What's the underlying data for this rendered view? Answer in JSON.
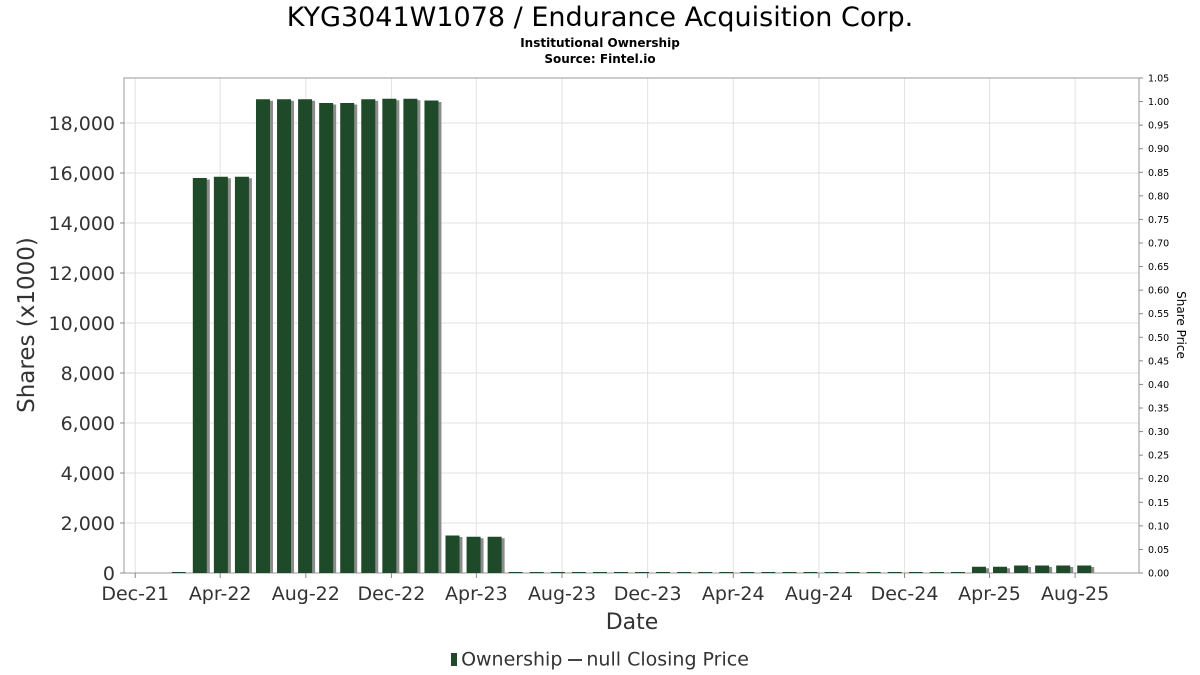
{
  "chart_data": {
    "type": "bar",
    "title": "KYG3041W1078 / Endurance Acquisition Corp.",
    "subtitle": [
      "Institutional Ownership",
      "Source: Fintel.io"
    ],
    "xlabel": "Date",
    "ylabel": "Shares (x1000)",
    "y2label": "Share Price",
    "ylim": [
      0,
      19800
    ],
    "y2lim": [
      0,
      1.05
    ],
    "xlim": [
      "2021-11-15",
      "2025-10-31"
    ],
    "x_ticks": [
      "Dec-21",
      "Apr-22",
      "Aug-22",
      "Dec-22",
      "Apr-23",
      "Aug-23",
      "Dec-23",
      "Apr-24",
      "Aug-24",
      "Dec-24",
      "Apr-25",
      "Aug-25"
    ],
    "x_tick_dates": [
      "2021-12-01",
      "2022-04-01",
      "2022-08-01",
      "2022-12-01",
      "2023-04-01",
      "2023-08-01",
      "2023-12-01",
      "2024-04-01",
      "2024-08-01",
      "2024-12-01",
      "2025-04-01",
      "2025-08-01"
    ],
    "y_ticks": [
      0,
      2000,
      4000,
      6000,
      8000,
      10000,
      12000,
      14000,
      16000,
      18000
    ],
    "y2_ticks": [
      0.0,
      0.05,
      0.1,
      0.15,
      0.2,
      0.25,
      0.3,
      0.35,
      0.4,
      0.45,
      0.5,
      0.55,
      0.6,
      0.65,
      0.7,
      0.75,
      0.8,
      0.85,
      0.9,
      0.95,
      1.0,
      1.05
    ],
    "grid": true,
    "legend_position": "bottom",
    "series": [
      {
        "name": "Ownership",
        "color": "#1f4a29",
        "x": [
          "2022-02-01",
          "2022-03-03",
          "2022-04-02",
          "2022-05-02",
          "2022-06-01",
          "2022-07-01",
          "2022-07-31",
          "2022-08-30",
          "2022-09-29",
          "2022-10-29",
          "2022-11-28",
          "2022-12-28",
          "2023-01-27",
          "2023-02-26",
          "2023-03-28",
          "2023-04-27",
          "2023-05-27",
          "2023-06-26",
          "2023-07-26",
          "2023-08-25",
          "2023-09-24",
          "2023-10-24",
          "2023-11-23",
          "2023-12-23",
          "2024-01-22",
          "2024-02-21",
          "2024-03-22",
          "2024-04-21",
          "2024-05-21",
          "2024-06-20",
          "2024-07-20",
          "2024-08-19",
          "2024-09-18",
          "2024-10-18",
          "2024-11-17",
          "2024-12-17",
          "2025-01-16",
          "2025-02-15",
          "2025-03-17",
          "2025-04-16",
          "2025-05-16",
          "2025-06-15",
          "2025-07-15",
          "2025-08-14"
        ],
        "values": [
          0,
          15800,
          15850,
          15850,
          18950,
          18950,
          18950,
          18800,
          18800,
          18950,
          18970,
          18970,
          18900,
          1500,
          1450,
          1450,
          0,
          0,
          0,
          0,
          0,
          0,
          0,
          0,
          0,
          0,
          0,
          0,
          0,
          0,
          0,
          0,
          0,
          0,
          0,
          30,
          30,
          30,
          250,
          250,
          300,
          300,
          300,
          300
        ]
      },
      {
        "name": "null Closing Price",
        "color": "#444444",
        "values": []
      }
    ]
  }
}
